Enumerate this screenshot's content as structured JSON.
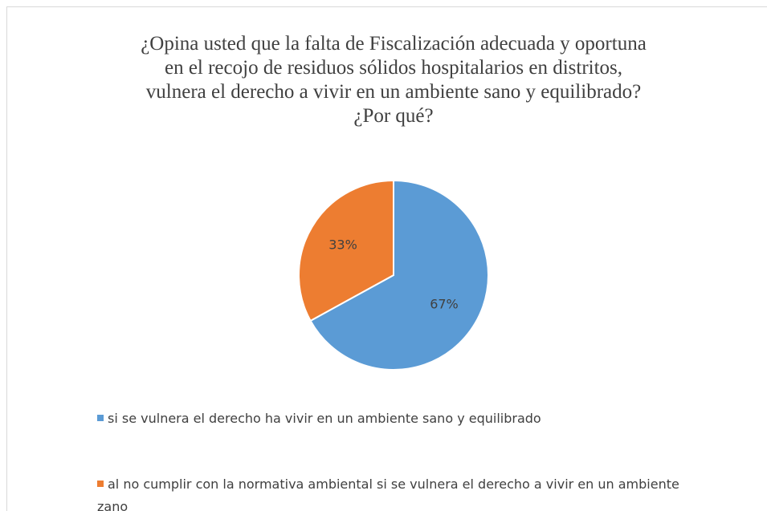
{
  "chart_data": {
    "type": "pie",
    "title": [
      "¿Opina usted que la falta de Fiscalización adecuada y oportuna",
      "en el recojo de residuos sólidos hospitalarios en distritos,",
      "vulnera el derecho a vivir en un ambiente sano y equilibrado?",
      "¿Por qué?"
    ],
    "categories": [
      "si se vulnera el derecho ha vivir en un ambiente sano y equilibrado",
      "al no cumplir con la normativa ambiental si se vulnera el derecho a vivir en un ambiente zano"
    ],
    "values": [
      67,
      33
    ],
    "value_labels": [
      "67%",
      "33%"
    ],
    "colors": [
      "#5b9bd5",
      "#ed7d31"
    ],
    "legend": "bottom"
  }
}
